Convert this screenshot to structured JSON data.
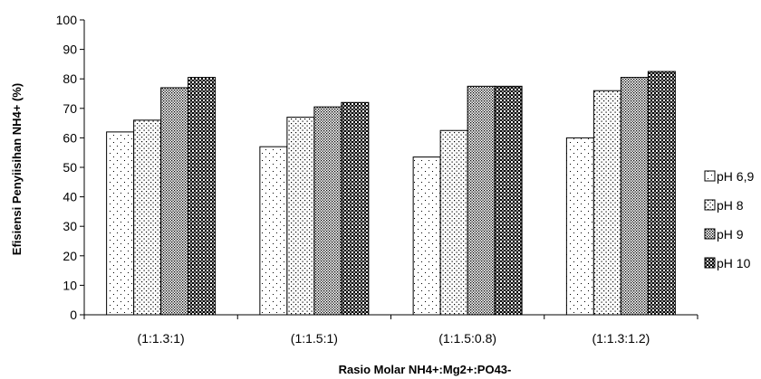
{
  "chart_data": {
    "type": "bar",
    "categories": [
      "(1:1.3:1)",
      "(1:1.5:1)",
      "(1:1.5:0.8)",
      "(1:1.3:1.2)"
    ],
    "series": [
      {
        "name": "pH 6,9",
        "values": [
          62,
          57,
          53.5,
          60
        ]
      },
      {
        "name": "pH 8",
        "values": [
          66,
          67,
          62.5,
          76
        ]
      },
      {
        "name": "pH 9",
        "values": [
          77,
          70.5,
          77.5,
          80.5
        ]
      },
      {
        "name": "pH 10",
        "values": [
          80.5,
          72,
          77.5,
          82.5
        ]
      }
    ],
    "xlabel": "Rasio Molar NH4+:Mg2+:PO43-",
    "ylabel": "Efisiensi Penyiisihan NH4+ (%)",
    "ylim": [
      0,
      100
    ],
    "yticks": [
      "0",
      "10",
      "20",
      "30",
      "40",
      "50",
      "60",
      "70",
      "80",
      "90",
      "100"
    ],
    "grid": false,
    "legend_position": "right",
    "patterns": [
      "sparse-dots",
      "medium-dots",
      "dense-dots",
      "checker"
    ]
  }
}
